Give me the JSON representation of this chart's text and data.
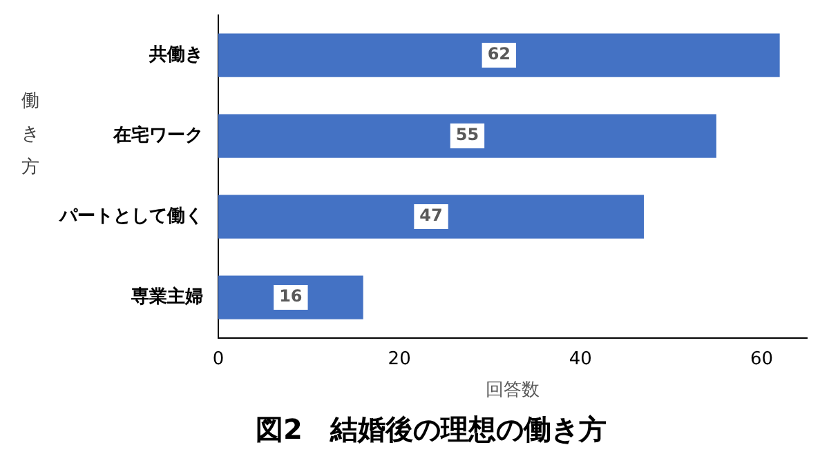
{
  "chart_data": {
    "type": "bar",
    "orientation": "horizontal",
    "title": "図2　結婚後の理想の働き方",
    "xlabel": "回答数",
    "ylabel": "働き方",
    "categories": [
      "共働き",
      "在宅ワーク",
      "パートとして働く",
      "専業主婦"
    ],
    "values": [
      62,
      55,
      47,
      16
    ],
    "color": "#4472c4",
    "xlim": [
      0,
      65
    ],
    "xticks": [
      0,
      20,
      40,
      60
    ],
    "grid": false,
    "legend": false,
    "data_labels": true
  }
}
